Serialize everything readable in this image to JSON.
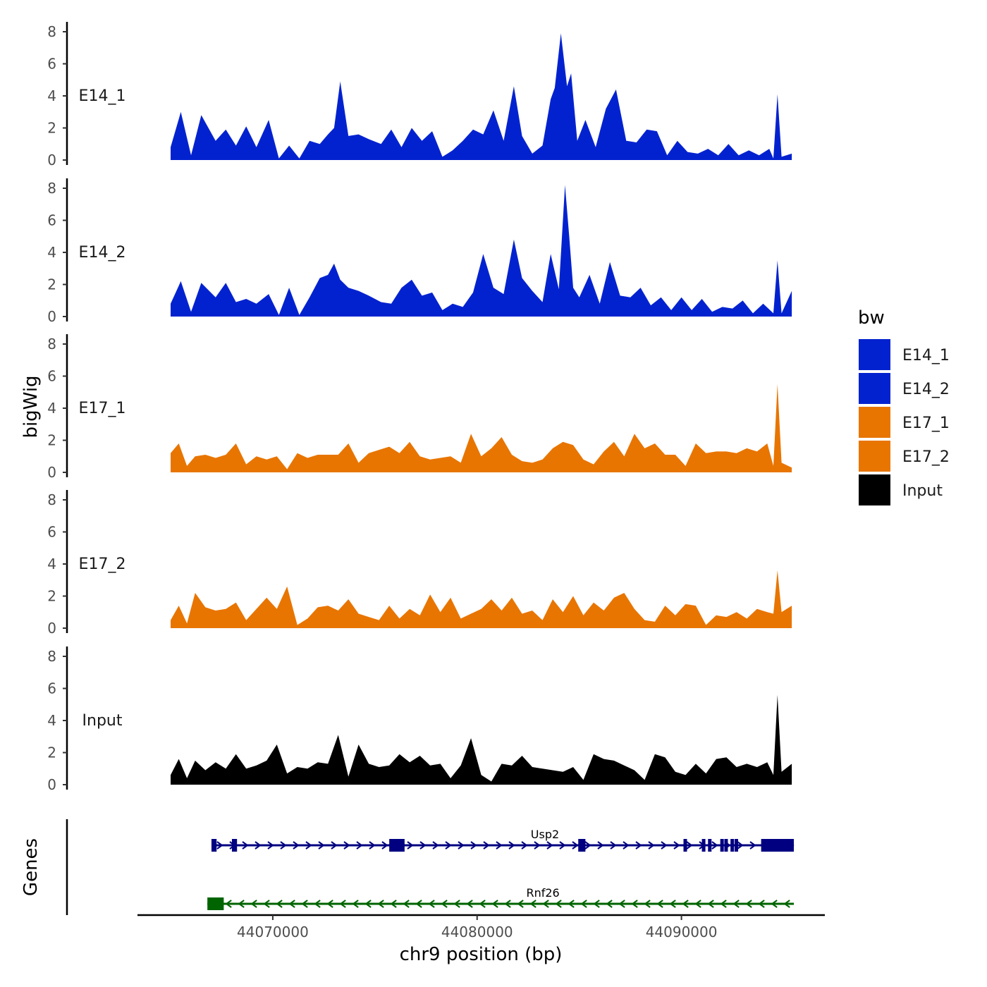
{
  "chart_data": {
    "type": "area",
    "chromosome": "chr9",
    "xlabel": "chr9 position (bp)",
    "ylabel": "bigWig",
    "genes_track_label": "Genes",
    "xlim": [
      44063500,
      44096000
    ],
    "ylim": [
      0,
      8.5
    ],
    "y_ticks": [
      "0",
      "2",
      "4",
      "6",
      "8"
    ],
    "x_ticks": [
      {
        "value": 44070000,
        "label": "44070000"
      },
      {
        "value": 44080000,
        "label": "44080000"
      },
      {
        "value": 44090000,
        "label": "44090000"
      }
    ],
    "legend": {
      "title": "bw",
      "entries": [
        {
          "label": "E14_1",
          "color": "#0322CF"
        },
        {
          "label": "E14_2",
          "color": "#0322CF"
        },
        {
          "label": "E17_1",
          "color": "#E87500"
        },
        {
          "label": "E17_2",
          "color": "#E87500"
        },
        {
          "label": "Input",
          "color": "#000000"
        }
      ]
    },
    "series": [
      {
        "name": "E14_1",
        "color": "#0322CF",
        "x": [
          44065000,
          44065500,
          44066000,
          44066500,
          44067200,
          44067700,
          44068200,
          44068700,
          44069200,
          44069800,
          44070300,
          44070800,
          44071300,
          44071800,
          44072300,
          44072700,
          44073000,
          44073300,
          44073700,
          44074200,
          44074700,
          44075300,
          44075800,
          44076300,
          44076800,
          44077300,
          44077800,
          44078300,
          44078800,
          44079300,
          44079800,
          44080300,
          44080800,
          44081300,
          44081800,
          44082200,
          44082700,
          44083200,
          44083600,
          44083800,
          44084100,
          44084400,
          44084600,
          44084900,
          44085300,
          44085800,
          44086300,
          44086800,
          44087300,
          44087800,
          44088300,
          44088800,
          44089300,
          44089800,
          44090300,
          44090800,
          44091300,
          44091800,
          44092300,
          44092800,
          44093300,
          44093800,
          44094300,
          44094500,
          44094700,
          44094900,
          44095400
        ],
        "values": [
          0.8,
          3.0,
          0.3,
          2.8,
          1.2,
          1.9,
          0.9,
          2.1,
          0.8,
          2.5,
          0.1,
          0.9,
          0.1,
          1.2,
          1.0,
          1.6,
          2.0,
          4.9,
          1.5,
          1.6,
          1.3,
          1.0,
          1.9,
          0.8,
          2.0,
          1.2,
          1.8,
          0.2,
          0.6,
          1.2,
          1.9,
          1.6,
          3.1,
          1.2,
          4.6,
          1.5,
          0.4,
          0.9,
          3.8,
          4.5,
          7.9,
          4.6,
          5.4,
          1.2,
          2.5,
          0.8,
          3.2,
          4.4,
          1.2,
          1.1,
          1.9,
          1.8,
          0.3,
          1.2,
          0.5,
          0.4,
          0.7,
          0.3,
          1.0,
          0.3,
          0.6,
          0.3,
          0.7,
          0.1,
          4.1,
          0.2,
          0.4
        ]
      },
      {
        "name": "E14_2",
        "color": "#0322CF",
        "x": [
          44065000,
          44065500,
          44066000,
          44066500,
          44067200,
          44067700,
          44068200,
          44068700,
          44069200,
          44069800,
          44070300,
          44070800,
          44071300,
          44071800,
          44072300,
          44072700,
          44073000,
          44073300,
          44073700,
          44074200,
          44074700,
          44075300,
          44075800,
          44076300,
          44076800,
          44077300,
          44077800,
          44078300,
          44078800,
          44079300,
          44079800,
          44080300,
          44080800,
          44081300,
          44081800,
          44082200,
          44082700,
          44083200,
          44083600,
          44084000,
          44084300,
          44084500,
          44084700,
          44085000,
          44085500,
          44086000,
          44086500,
          44087000,
          44087500,
          44088000,
          44088500,
          44089000,
          44089500,
          44090000,
          44090500,
          44091000,
          44091500,
          44092000,
          44092500,
          44093000,
          44093500,
          44094000,
          44094500,
          44094700,
          44094900,
          44095400
        ],
        "values": [
          0.8,
          2.2,
          0.3,
          2.1,
          1.2,
          2.1,
          0.9,
          1.1,
          0.8,
          1.4,
          0.1,
          1.8,
          0.1,
          1.2,
          2.4,
          2.6,
          3.3,
          2.3,
          1.8,
          1.6,
          1.3,
          0.9,
          0.8,
          1.8,
          2.3,
          1.3,
          1.5,
          0.4,
          0.8,
          0.6,
          1.5,
          3.9,
          1.8,
          1.4,
          4.8,
          2.4,
          1.6,
          0.9,
          3.9,
          1.7,
          8.2,
          5.1,
          1.8,
          1.2,
          2.6,
          0.8,
          3.4,
          1.3,
          1.2,
          1.8,
          0.7,
          1.2,
          0.4,
          1.2,
          0.4,
          1.1,
          0.3,
          0.6,
          0.5,
          1.0,
          0.2,
          0.8,
          0.2,
          3.5,
          0.2,
          1.6
        ]
      },
      {
        "name": "E17_1",
        "color": "#E87500",
        "x": [
          44065000,
          44065400,
          44065800,
          44066200,
          44066700,
          44067200,
          44067700,
          44068200,
          44068700,
          44069200,
          44069700,
          44070200,
          44070700,
          44071200,
          44071700,
          44072200,
          44072700,
          44073200,
          44073700,
          44074200,
          44074700,
          44075200,
          44075700,
          44076200,
          44076700,
          44077200,
          44077700,
          44078200,
          44078700,
          44079200,
          44079700,
          44080200,
          44080700,
          44081200,
          44081700,
          44082200,
          44082700,
          44083200,
          44083700,
          44084200,
          44084700,
          44085200,
          44085700,
          44086200,
          44086700,
          44087200,
          44087700,
          44088200,
          44088700,
          44089200,
          44089700,
          44090200,
          44090700,
          44091200,
          44091700,
          44092200,
          44092700,
          44093200,
          44093700,
          44094200,
          44094500,
          44094700,
          44094900,
          44095400
        ],
        "values": [
          1.2,
          1.8,
          0.4,
          1.0,
          1.1,
          0.9,
          1.1,
          1.8,
          0.5,
          1.0,
          0.8,
          1.0,
          0.2,
          1.2,
          0.9,
          1.1,
          1.1,
          1.1,
          1.8,
          0.6,
          1.2,
          1.4,
          1.6,
          1.2,
          1.9,
          1.0,
          0.8,
          0.9,
          1.0,
          0.6,
          2.4,
          1.0,
          1.5,
          2.2,
          1.1,
          0.7,
          0.6,
          0.8,
          1.5,
          1.9,
          1.7,
          0.8,
          0.5,
          1.3,
          1.9,
          1.0,
          2.4,
          1.5,
          1.8,
          1.1,
          1.1,
          0.4,
          1.8,
          1.2,
          1.3,
          1.3,
          1.2,
          1.5,
          1.3,
          1.8,
          0.4,
          5.5,
          0.6,
          0.3
        ]
      },
      {
        "name": "E17_2",
        "color": "#E87500",
        "x": [
          44065000,
          44065400,
          44065800,
          44066200,
          44066700,
          44067200,
          44067700,
          44068200,
          44068700,
          44069200,
          44069700,
          44070200,
          44070700,
          44071200,
          44071700,
          44072200,
          44072700,
          44073200,
          44073700,
          44074200,
          44074700,
          44075200,
          44075700,
          44076200,
          44076700,
          44077200,
          44077700,
          44078200,
          44078700,
          44079200,
          44079700,
          44080200,
          44080700,
          44081200,
          44081700,
          44082200,
          44082700,
          44083200,
          44083700,
          44084200,
          44084700,
          44085200,
          44085700,
          44086200,
          44086700,
          44087200,
          44087700,
          44088200,
          44088700,
          44089200,
          44089700,
          44090200,
          44090700,
          44091200,
          44091700,
          44092200,
          44092700,
          44093200,
          44093700,
          44094200,
          44094500,
          44094700,
          44094900,
          44095400
        ],
        "values": [
          0.5,
          1.4,
          0.3,
          2.2,
          1.3,
          1.1,
          1.2,
          1.6,
          0.5,
          1.2,
          1.9,
          1.2,
          2.6,
          0.2,
          0.6,
          1.3,
          1.4,
          1.1,
          1.8,
          0.9,
          0.7,
          0.5,
          1.4,
          0.6,
          1.2,
          0.8,
          2.1,
          1.0,
          1.9,
          0.6,
          0.9,
          1.2,
          1.8,
          1.1,
          1.9,
          0.9,
          1.1,
          0.5,
          1.8,
          1.0,
          2.0,
          0.8,
          1.6,
          1.1,
          1.9,
          2.2,
          1.2,
          0.5,
          0.4,
          1.4,
          0.8,
          1.5,
          1.4,
          0.2,
          0.8,
          0.7,
          1.0,
          0.6,
          1.2,
          1.0,
          0.9,
          3.6,
          1.0,
          1.4
        ]
      },
      {
        "name": "Input",
        "color": "#000000",
        "x": [
          44065000,
          44065400,
          44065800,
          44066200,
          44066700,
          44067200,
          44067700,
          44068200,
          44068700,
          44069200,
          44069700,
          44070200,
          44070700,
          44071200,
          44071700,
          44072200,
          44072700,
          44073200,
          44073700,
          44074200,
          44074700,
          44075200,
          44075700,
          44076200,
          44076700,
          44077200,
          44077700,
          44078200,
          44078700,
          44079200,
          44079700,
          44080200,
          44080700,
          44081200,
          44081700,
          44082200,
          44082700,
          44083200,
          44083700,
          44084200,
          44084700,
          44085200,
          44085700,
          44086200,
          44086700,
          44087200,
          44087700,
          44088200,
          44088700,
          44089200,
          44089700,
          44090200,
          44090700,
          44091200,
          44091700,
          44092200,
          44092700,
          44093200,
          44093700,
          44094200,
          44094500,
          44094700,
          44094900,
          44095400
        ],
        "values": [
          0.6,
          1.6,
          0.4,
          1.5,
          0.9,
          1.4,
          1.0,
          1.9,
          1.0,
          1.2,
          1.5,
          2.5,
          0.7,
          1.1,
          1.0,
          1.4,
          1.3,
          3.1,
          0.5,
          2.5,
          1.3,
          1.1,
          1.2,
          1.9,
          1.4,
          1.8,
          1.2,
          1.3,
          0.4,
          1.2,
          2.9,
          0.6,
          0.2,
          1.3,
          1.2,
          1.8,
          1.1,
          1.0,
          0.9,
          0.8,
          1.1,
          0.3,
          1.9,
          1.6,
          1.5,
          1.2,
          0.9,
          0.3,
          1.9,
          1.7,
          0.8,
          0.6,
          1.3,
          0.7,
          1.6,
          1.7,
          1.1,
          1.3,
          1.1,
          1.4,
          0.6,
          5.6,
          0.8,
          1.3
        ]
      }
    ],
    "genes": [
      {
        "name": "Usp2",
        "color": "#000080",
        "strand": "+",
        "start": 44067000,
        "end": 44095500,
        "exons": [
          [
            44067000,
            44067250
          ],
          [
            44068000,
            44068250
          ],
          [
            44075700,
            44076450
          ],
          [
            44084950,
            44085300
          ],
          [
            44090100,
            44090200
          ],
          [
            44091000,
            44091100
          ],
          [
            44091300,
            44091400
          ],
          [
            44091900,
            44092000
          ],
          [
            44092100,
            44092200
          ],
          [
            44092400,
            44092500
          ],
          [
            44092600,
            44092700
          ],
          [
            44093900,
            44095500
          ]
        ]
      },
      {
        "name": "Rnf26",
        "color": "#006400",
        "strand": "-",
        "start": 44066800,
        "end": 44095500,
        "exons": [
          [
            44066800,
            44067600
          ]
        ]
      }
    ]
  }
}
